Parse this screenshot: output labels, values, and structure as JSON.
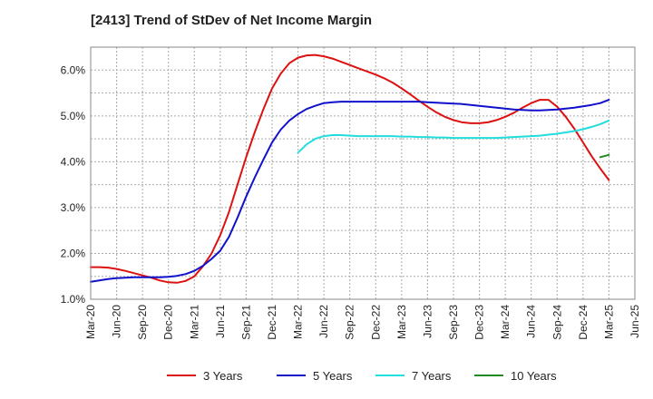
{
  "chart_data": {
    "type": "line",
    "title": "[2413]  Trend of StDev of Net Income Margin",
    "xlabel": "",
    "ylabel": "",
    "x_ticks": [
      "Mar-20",
      "Jun-20",
      "Sep-20",
      "Dec-20",
      "Mar-21",
      "Jun-21",
      "Sep-21",
      "Dec-21",
      "Mar-22",
      "Jun-22",
      "Sep-22",
      "Dec-22",
      "Mar-23",
      "Jun-23",
      "Sep-23",
      "Dec-23",
      "Mar-24",
      "Jun-24",
      "Sep-24",
      "Dec-24",
      "Mar-25",
      "Jun-25"
    ],
    "y_ticks": [
      "1.0%",
      "2.0%",
      "3.0%",
      "4.0%",
      "5.0%",
      "6.0%"
    ],
    "ylim": [
      1.0,
      6.5
    ],
    "grid": true,
    "legend_position": "bottom",
    "series": [
      {
        "name": "3 Years",
        "color": "#dd1111",
        "x": [
          "Mar-20",
          "Apr-20",
          "May-20",
          "Jun-20",
          "Jul-20",
          "Aug-20",
          "Sep-20",
          "Oct-20",
          "Nov-20",
          "Dec-20",
          "Jan-21",
          "Feb-21",
          "Mar-21",
          "Apr-21",
          "May-21",
          "Jun-21",
          "Jul-21",
          "Aug-21",
          "Sep-21",
          "Oct-21",
          "Nov-21",
          "Dec-21",
          "Jan-22",
          "Feb-22",
          "Mar-22",
          "Apr-22",
          "May-22",
          "Jun-22",
          "Jul-22",
          "Aug-22",
          "Sep-22",
          "Oct-22",
          "Nov-22",
          "Dec-22",
          "Jan-23",
          "Feb-23",
          "Mar-23",
          "Apr-23",
          "May-23",
          "Jun-23",
          "Jul-23",
          "Aug-23",
          "Sep-23",
          "Oct-23",
          "Nov-23",
          "Dec-23",
          "Jan-24",
          "Feb-24",
          "Mar-24",
          "Apr-24",
          "May-24",
          "Jun-24",
          "Jul-24",
          "Aug-24",
          "Sep-24",
          "Oct-24",
          "Nov-24",
          "Dec-24",
          "Jan-25",
          "Feb-25",
          "Mar-25"
        ],
        "values": [
          1.7,
          1.7,
          1.69,
          1.66,
          1.62,
          1.57,
          1.52,
          1.47,
          1.41,
          1.37,
          1.36,
          1.4,
          1.5,
          1.72,
          2.0,
          2.4,
          2.9,
          3.5,
          4.1,
          4.65,
          5.15,
          5.6,
          5.92,
          6.15,
          6.27,
          6.32,
          6.33,
          6.3,
          6.25,
          6.18,
          6.11,
          6.04,
          5.97,
          5.9,
          5.82,
          5.72,
          5.6,
          5.47,
          5.33,
          5.2,
          5.08,
          4.98,
          4.91,
          4.86,
          4.84,
          4.84,
          4.86,
          4.91,
          4.98,
          5.07,
          5.18,
          5.28,
          5.35,
          5.35,
          5.2,
          4.98,
          4.72,
          4.42,
          4.12,
          3.85,
          3.6
        ]
      },
      {
        "name": "5 Years",
        "color": "#1111cc",
        "x": [
          "Mar-20",
          "Apr-20",
          "May-20",
          "Jun-20",
          "Jul-20",
          "Aug-20",
          "Sep-20",
          "Oct-20",
          "Nov-20",
          "Dec-20",
          "Jan-21",
          "Feb-21",
          "Mar-21",
          "Apr-21",
          "May-21",
          "Jun-21",
          "Jul-21",
          "Aug-21",
          "Sep-21",
          "Oct-21",
          "Nov-21",
          "Dec-21",
          "Jan-22",
          "Feb-22",
          "Mar-22",
          "Apr-22",
          "May-22",
          "Jun-22",
          "Jul-22",
          "Aug-22",
          "Sep-22",
          "Oct-22",
          "Nov-22",
          "Dec-22",
          "Jan-23",
          "Feb-23",
          "Mar-23",
          "Apr-23",
          "May-23",
          "Jun-23",
          "Jul-23",
          "Aug-23",
          "Sep-23",
          "Oct-23",
          "Nov-23",
          "Dec-23",
          "Jan-24",
          "Feb-24",
          "Mar-24",
          "Apr-24",
          "May-24",
          "Jun-24",
          "Jul-24",
          "Aug-24",
          "Sep-24",
          "Oct-24",
          "Nov-24",
          "Dec-24",
          "Jan-25",
          "Feb-25",
          "Mar-25"
        ],
        "values": [
          1.38,
          1.41,
          1.44,
          1.46,
          1.47,
          1.48,
          1.48,
          1.48,
          1.48,
          1.49,
          1.51,
          1.55,
          1.62,
          1.73,
          1.88,
          2.06,
          2.36,
          2.78,
          3.24,
          3.66,
          4.05,
          4.42,
          4.7,
          4.9,
          5.04,
          5.15,
          5.22,
          5.28,
          5.3,
          5.31,
          5.31,
          5.31,
          5.31,
          5.31,
          5.31,
          5.31,
          5.31,
          5.31,
          5.31,
          5.3,
          5.29,
          5.28,
          5.27,
          5.26,
          5.24,
          5.22,
          5.2,
          5.18,
          5.16,
          5.14,
          5.13,
          5.12,
          5.12,
          5.13,
          5.14,
          5.16,
          5.18,
          5.21,
          5.24,
          5.28,
          5.35
        ]
      },
      {
        "name": "7 Years",
        "color": "#22dddd",
        "x": [
          "Mar-22",
          "Apr-22",
          "May-22",
          "Jun-22",
          "Jul-22",
          "Aug-22",
          "Sep-22",
          "Oct-22",
          "Nov-22",
          "Dec-22",
          "Jan-23",
          "Feb-23",
          "Mar-23",
          "Apr-23",
          "May-23",
          "Jun-23",
          "Jul-23",
          "Aug-23",
          "Sep-23",
          "Oct-23",
          "Nov-23",
          "Dec-23",
          "Jan-24",
          "Feb-24",
          "Mar-24",
          "Apr-24",
          "May-24",
          "Jun-24",
          "Jul-24",
          "Aug-24",
          "Sep-24",
          "Oct-24",
          "Nov-24",
          "Dec-24",
          "Jan-25",
          "Feb-25",
          "Mar-25"
        ],
        "values": [
          4.2,
          4.38,
          4.5,
          4.56,
          4.58,
          4.58,
          4.57,
          4.56,
          4.56,
          4.56,
          4.56,
          4.56,
          4.55,
          4.55,
          4.54,
          4.54,
          4.53,
          4.53,
          4.52,
          4.52,
          4.52,
          4.52,
          4.52,
          4.52,
          4.53,
          4.54,
          4.55,
          4.56,
          4.57,
          4.59,
          4.61,
          4.64,
          4.67,
          4.71,
          4.76,
          4.82,
          4.9
        ]
      },
      {
        "name": "10 Years",
        "color": "#228822",
        "x": [
          "Feb-25",
          "Mar-25"
        ],
        "values": [
          4.1,
          4.15
        ]
      }
    ]
  }
}
